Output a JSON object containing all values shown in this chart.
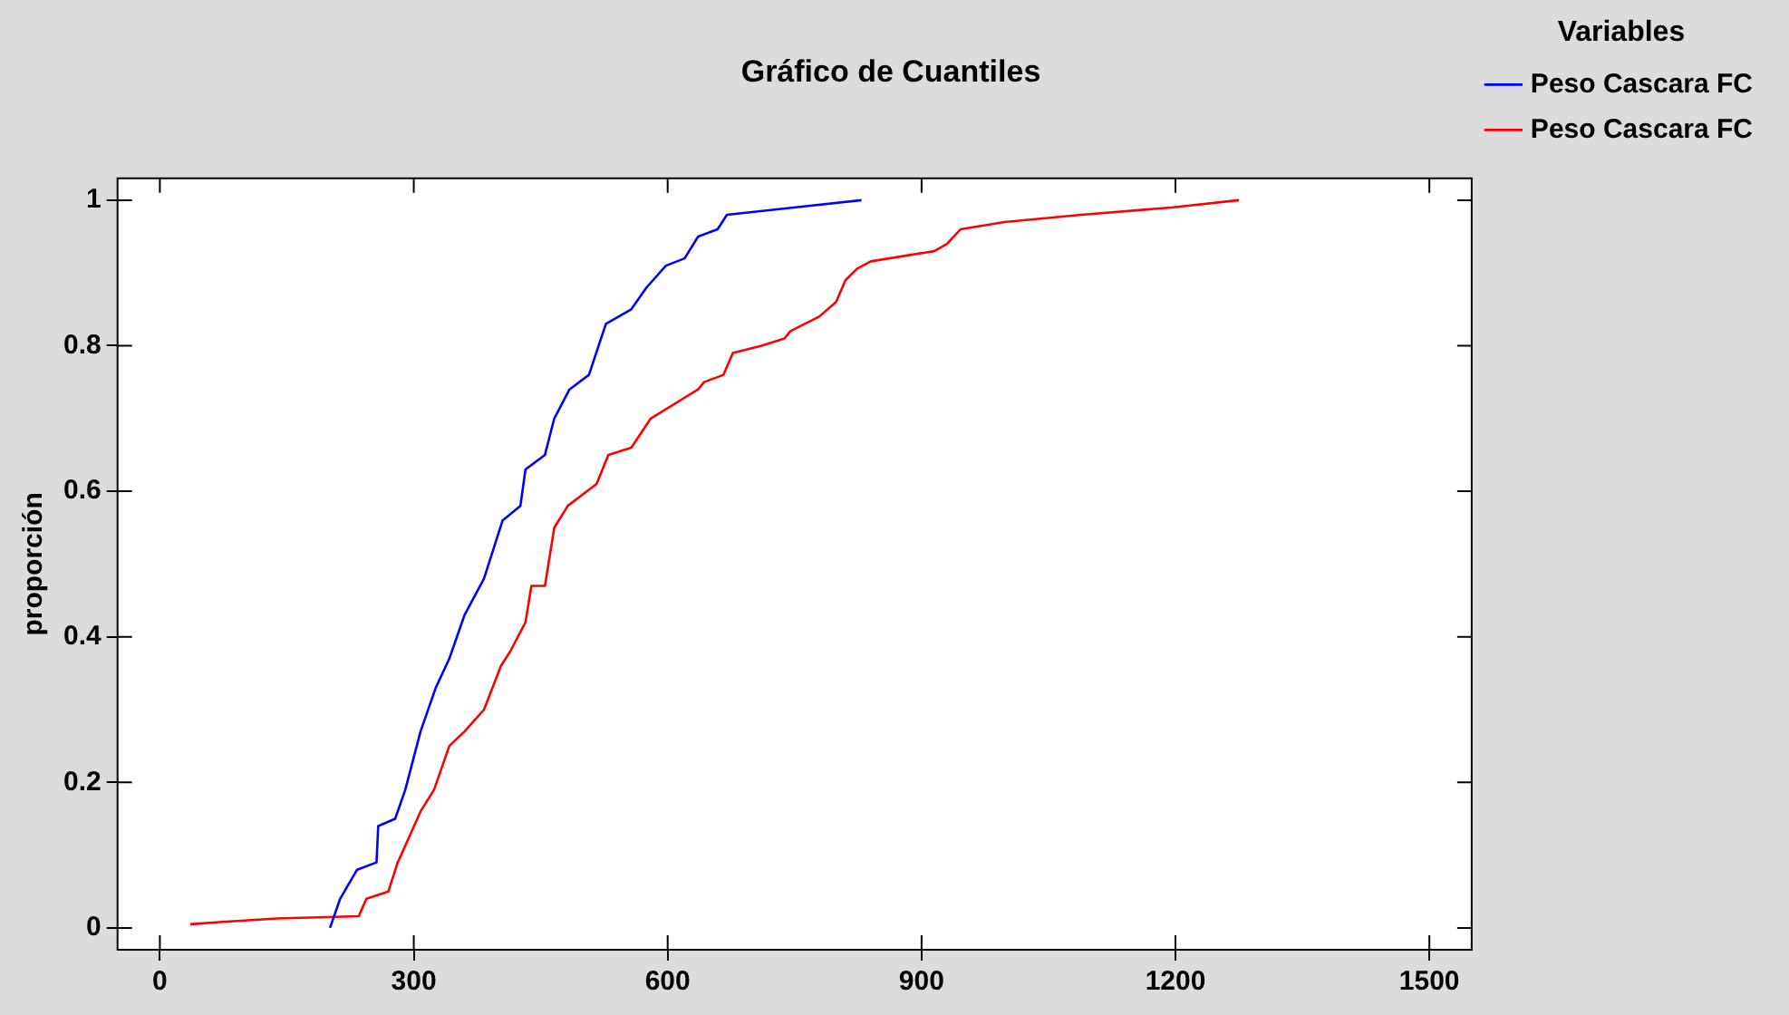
{
  "chart_data": {
    "type": "line",
    "title": "Gráfico de Cuantiles",
    "ylabel": "proporción",
    "legend_title": "Variables",
    "legend": "right",
    "grid": false,
    "marker": "none",
    "line_style": "solid",
    "xlim": [
      -50,
      1550
    ],
    "xticks": [
      0,
      300,
      600,
      900,
      1200,
      1500
    ],
    "ylim": [
      -0.03,
      1.03
    ],
    "yticks": [
      0,
      0.2,
      0.4,
      0.6,
      0.8,
      1
    ],
    "series": [
      {
        "name": "Peso Cascara FC",
        "color": "#0000ff",
        "x": [
          201,
          213,
          233,
          256,
          258,
          278,
          290,
          308,
          326,
          342,
          360,
          383,
          405,
          426,
          432,
          455,
          466,
          484,
          507,
          527,
          557,
          575,
          598,
          620,
          636,
          659,
          670,
          749,
          829
        ],
        "values": [
          0.0,
          0.04,
          0.08,
          0.09,
          0.14,
          0.15,
          0.19,
          0.27,
          0.33,
          0.37,
          0.43,
          0.48,
          0.56,
          0.58,
          0.63,
          0.65,
          0.7,
          0.74,
          0.76,
          0.83,
          0.85,
          0.88,
          0.91,
          0.92,
          0.95,
          0.96,
          0.98,
          0.99,
          1.0
        ]
      },
      {
        "name": "Peso Cascara FC",
        "color": "#ff0000",
        "x": [
          36,
          70,
          138,
          235,
          244,
          270,
          281,
          285,
          308,
          324,
          342,
          360,
          383,
          403,
          414,
          432,
          439,
          455,
          466,
          482,
          516,
          530,
          557,
          580,
          636,
          643,
          666,
          677,
          711,
          738,
          745,
          779,
          799,
          810,
          824,
          840,
          915,
          930,
          946,
          998,
          1089,
          1195,
          1275
        ],
        "values": [
          0.005,
          0.008,
          0.013,
          0.016,
          0.04,
          0.05,
          0.09,
          0.1,
          0.16,
          0.19,
          0.25,
          0.27,
          0.3,
          0.36,
          0.38,
          0.42,
          0.47,
          0.47,
          0.55,
          0.58,
          0.61,
          0.65,
          0.66,
          0.7,
          0.74,
          0.75,
          0.76,
          0.79,
          0.8,
          0.81,
          0.82,
          0.84,
          0.86,
          0.89,
          0.906,
          0.916,
          0.93,
          0.94,
          0.96,
          0.97,
          0.98,
          0.99,
          1.0
        ]
      }
    ]
  }
}
